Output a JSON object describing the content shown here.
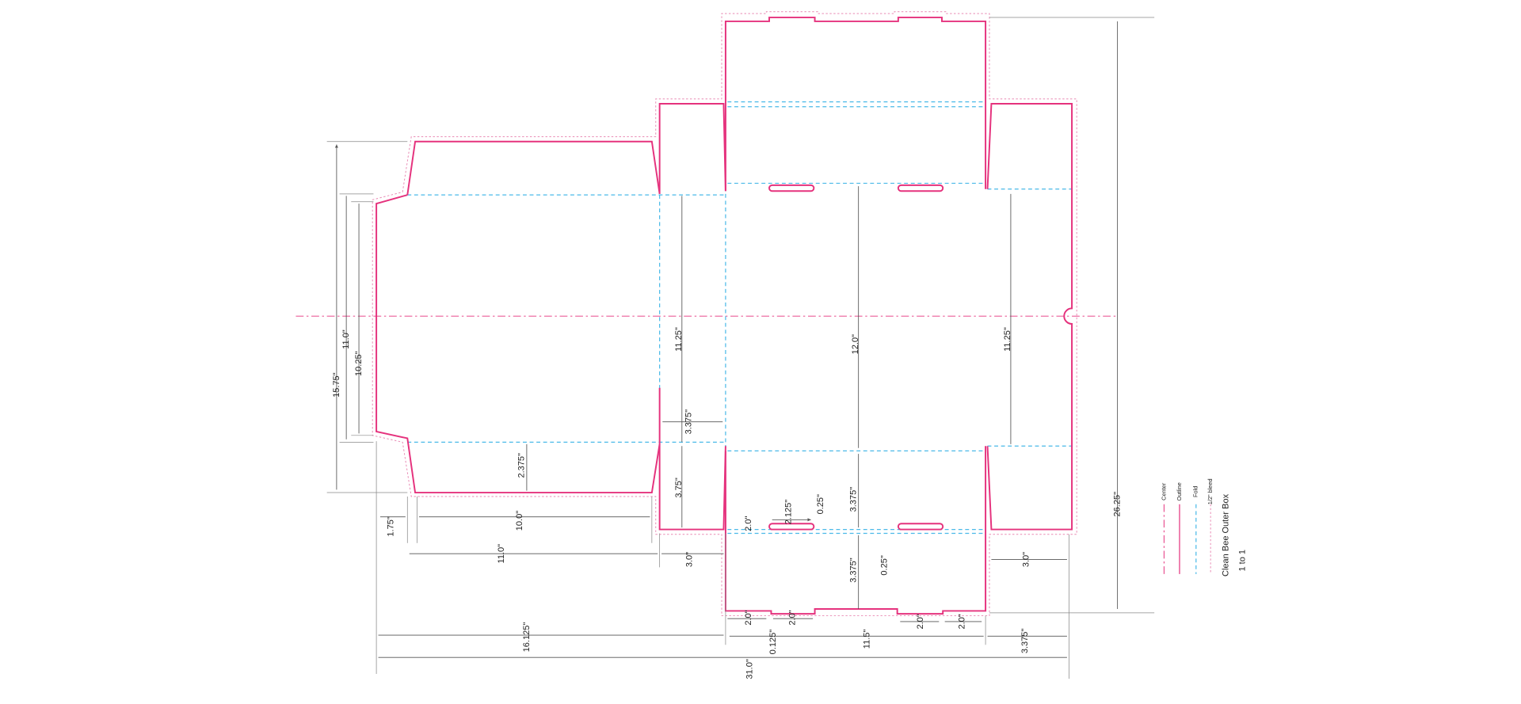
{
  "dimensions": [
    "15.75\"",
    "11.0\"",
    "10.25\"",
    "2.375\"",
    "1.75\"",
    "10.0\"",
    "11.0\"",
    "16.125\"",
    "31.0\"",
    "11.25\"",
    "3.375\"",
    "3.75\"",
    "3.0\"",
    "2.0\"",
    "2.125\"",
    "0.25\"",
    "3.375\"",
    "12.0\"",
    "0.25\"",
    "3.375\"",
    "2.0\"",
    "2.0\"",
    "0.125\"",
    "11.5\"",
    "2.0\"",
    "2.0\"",
    "3.375\"",
    "11.25\"",
    "3.0\"",
    "26.25\""
  ],
  "legend": {
    "items": [
      "Center",
      "Outline",
      "Fold",
      "1/2\" bleed"
    ],
    "title": "Clean Bee Outer Box",
    "scale": "1 to 1"
  }
}
